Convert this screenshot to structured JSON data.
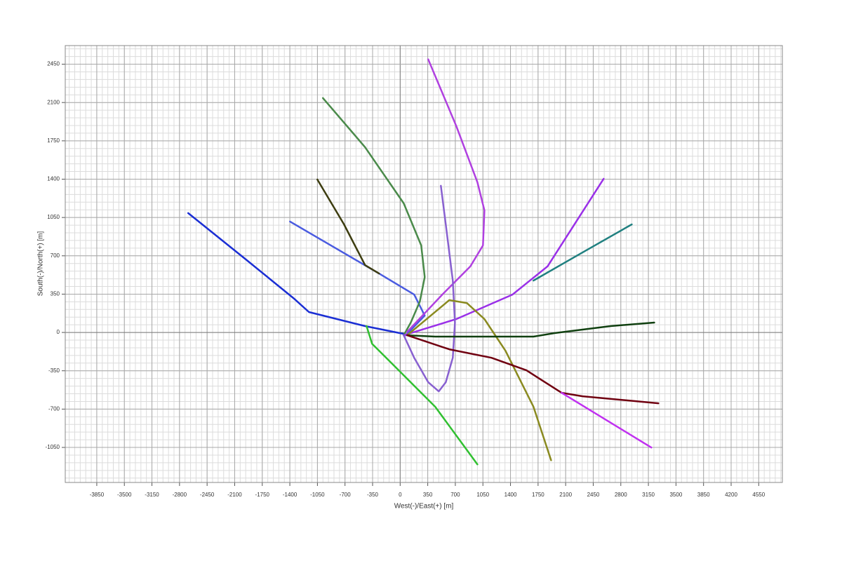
{
  "chart_data": {
    "type": "line",
    "x_label": "West(-)/East(+) [m]",
    "y_label": "South(-)/North(+) [m]",
    "xlim": [
      -4250,
      4850
    ],
    "ylim": [
      -1370,
      2620
    ],
    "xticks": [
      -3850,
      -3500,
      -3150,
      -2800,
      -2450,
      -2100,
      -1750,
      -1400,
      -1050,
      -700,
      -350,
      0,
      350,
      700,
      1050,
      1400,
      1750,
      2100,
      2450,
      2800,
      3150,
      3500,
      3850,
      4200,
      4550
    ],
    "yticks": [
      -1050,
      -700,
      -350,
      0,
      350,
      700,
      1050,
      1400,
      1750,
      2100,
      2450
    ],
    "grid": true,
    "series": [
      {
        "color": "#1a2ed4",
        "x": [
          -2690,
          -1959,
          -1354,
          -1158,
          -445,
          45
        ],
        "y": [
          1090,
          667,
          314,
          186,
          58,
          -13
        ]
      },
      {
        "color": "#4a5be0",
        "x": [
          -1398,
          -267,
          178,
          312,
          71
        ],
        "y": [
          1013,
          538,
          346,
          154,
          -26
        ]
      },
      {
        "color": "#3d3d10",
        "x": [
          -1051,
          -712,
          -445,
          -267
        ],
        "y": [
          1397,
          987,
          615,
          538
        ]
      },
      {
        "color": "#4a8a4a",
        "x": [
          -980,
          -445,
          45,
          267,
          312,
          249,
          134,
          45
        ],
        "y": [
          2141,
          1692,
          1179,
          795,
          506,
          282,
          90,
          -26
        ]
      },
      {
        "color": "#b040e0",
        "x": [
          356,
          712,
          980,
          1069,
          1051,
          890,
          534,
          89
        ],
        "y": [
          2494,
          1885,
          1372,
          1115,
          795,
          603,
          346,
          6
        ]
      },
      {
        "color": "#9a30e8",
        "x": [
          45,
          712,
          1425,
          1870,
          2582
        ],
        "y": [
          -26,
          122,
          346,
          603,
          1404
        ]
      },
      {
        "color": "#208080",
        "x": [
          1692,
          2315,
          2939
        ],
        "y": [
          474,
          731,
          987
        ]
      },
      {
        "color": "#8860d0",
        "x": [
          516,
          579,
          668,
          695,
          668,
          579,
          490,
          356,
          178,
          45
        ],
        "y": [
          1340,
          987,
          474,
          90,
          -231,
          -455,
          -538,
          -455,
          -231,
          -26
        ]
      },
      {
        "color": "#8a8a20",
        "x": [
          89,
          623,
          846,
          1069,
          1336,
          1692,
          1915
        ],
        "y": [
          -26,
          295,
          269,
          122,
          -167,
          -679,
          -1167
        ]
      },
      {
        "color": "#104010",
        "x": [
          89,
          445,
          1692,
          1959,
          2671,
          3224
        ],
        "y": [
          -26,
          -38,
          -38,
          -6,
          58,
          90
        ]
      },
      {
        "color": "#700010",
        "x": [
          89,
          623,
          1158,
          1603,
          2048,
          2315,
          3277
        ],
        "y": [
          -26,
          -154,
          -231,
          -346,
          -551,
          -583,
          -647
        ]
      },
      {
        "color": "#c030f0",
        "x": [
          2048,
          3188
        ],
        "y": [
          -551,
          -1051
        ]
      },
      {
        "color": "#30c030",
        "x": [
          -427,
          -356,
          -89,
          445,
          980
        ],
        "y": [
          58,
          -103,
          -295,
          -679,
          -1205
        ]
      }
    ]
  }
}
